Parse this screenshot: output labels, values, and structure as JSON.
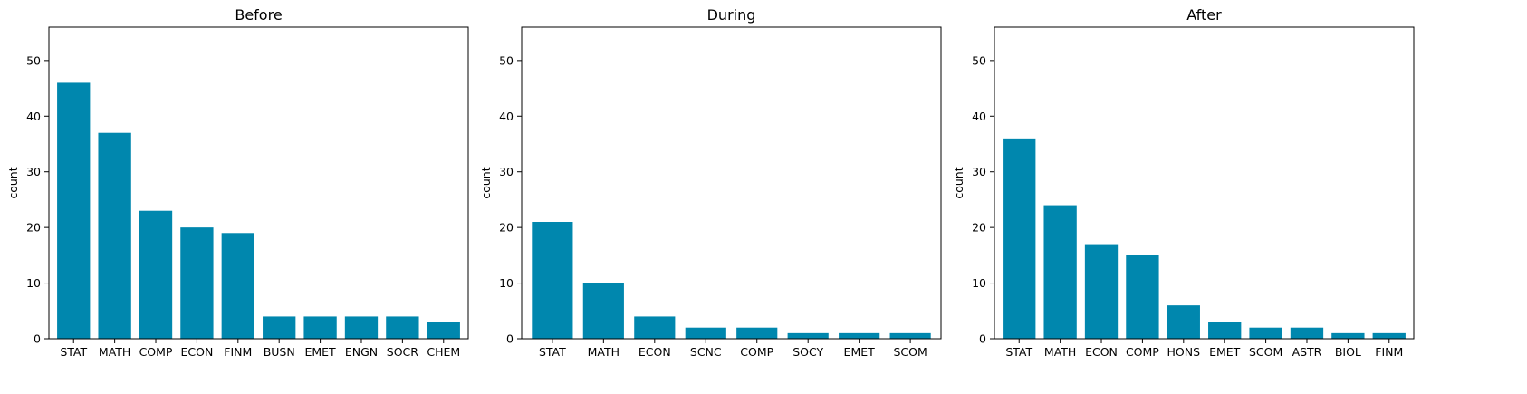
{
  "bar_color": "#0087ae",
  "chart_data": [
    {
      "type": "bar",
      "title": "Before",
      "xlabel": "",
      "ylabel": "count",
      "ylim": [
        0,
        56
      ],
      "yticks": [
        0,
        10,
        20,
        30,
        40,
        50
      ],
      "categories": [
        "STAT",
        "MATH",
        "COMP",
        "ECON",
        "FINM",
        "BUSN",
        "EMET",
        "ENGN",
        "SOCR",
        "CHEM"
      ],
      "values": [
        46,
        37,
        23,
        20,
        19,
        4,
        4,
        4,
        4,
        3
      ]
    },
    {
      "type": "bar",
      "title": "During",
      "xlabel": "",
      "ylabel": "count",
      "ylim": [
        0,
        56
      ],
      "yticks": [
        0,
        10,
        20,
        30,
        40,
        50
      ],
      "categories": [
        "STAT",
        "MATH",
        "ECON",
        "SCNC",
        "COMP",
        "SOCY",
        "EMET",
        "SCOM"
      ],
      "values": [
        21,
        10,
        4,
        2,
        2,
        1,
        1,
        1
      ]
    },
    {
      "type": "bar",
      "title": "After",
      "xlabel": "",
      "ylabel": "count",
      "ylim": [
        0,
        56
      ],
      "yticks": [
        0,
        10,
        20,
        30,
        40,
        50
      ],
      "categories": [
        "STAT",
        "MATH",
        "ECON",
        "COMP",
        "HONS",
        "EMET",
        "SCOM",
        "ASTR",
        "BIOL",
        "FINM"
      ],
      "values": [
        36,
        24,
        17,
        15,
        6,
        3,
        2,
        2,
        1,
        1
      ]
    }
  ]
}
